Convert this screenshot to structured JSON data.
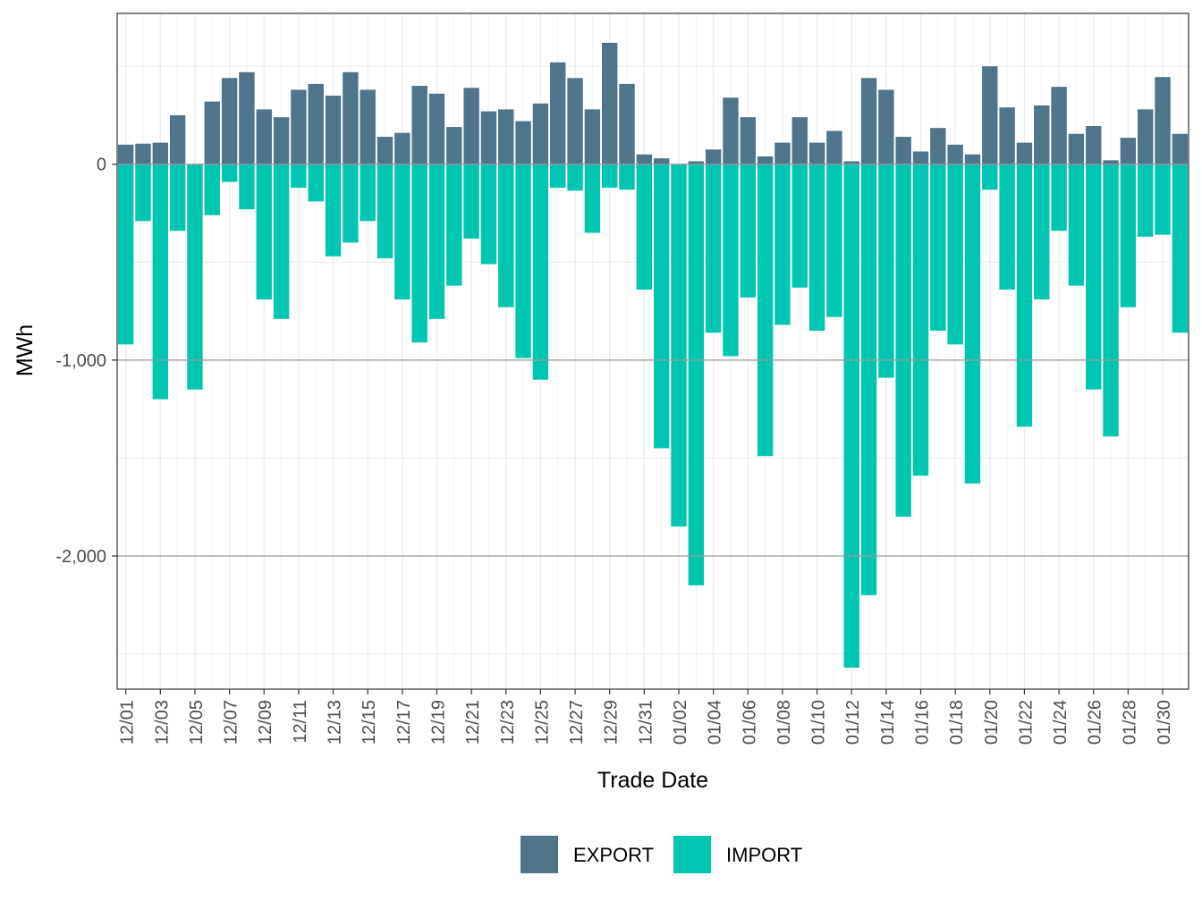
{
  "chart_data": {
    "type": "bar",
    "stacking": "diverging",
    "title": "",
    "xlabel": "Trade Date",
    "ylabel": "MWh",
    "ylim": [
      -2680,
      770
    ],
    "yticks": [
      0,
      -1000,
      -2000
    ],
    "ytick_labels": [
      "0",
      "-1,000",
      "-2,000"
    ],
    "grid": true,
    "legend_position": "bottom",
    "categories": [
      "12/01",
      "12/02",
      "12/03",
      "12/04",
      "12/05",
      "12/06",
      "12/07",
      "12/08",
      "12/09",
      "12/10",
      "12/11",
      "12/12",
      "12/13",
      "12/14",
      "12/15",
      "12/16",
      "12/17",
      "12/18",
      "12/19",
      "12/20",
      "12/21",
      "12/22",
      "12/23",
      "12/24",
      "12/25",
      "12/26",
      "12/27",
      "12/28",
      "12/29",
      "12/30",
      "12/31",
      "01/01",
      "01/02",
      "01/03",
      "01/04",
      "01/05",
      "01/06",
      "01/07",
      "01/08",
      "01/09",
      "01/10",
      "01/11",
      "01/12",
      "01/13",
      "01/14",
      "01/15",
      "01/16",
      "01/17",
      "01/18",
      "01/19",
      "01/20",
      "01/21",
      "01/22",
      "01/23",
      "01/24",
      "01/25",
      "01/26",
      "01/27",
      "01/28",
      "01/29",
      "01/30",
      "01/31"
    ],
    "xtick_labels": [
      "12/01",
      "12/03",
      "12/05",
      "12/07",
      "12/09",
      "12/11",
      "12/13",
      "12/15",
      "12/17",
      "12/19",
      "12/21",
      "12/23",
      "12/25",
      "12/27",
      "12/29",
      "12/31",
      "01/02",
      "01/04",
      "01/06",
      "01/08",
      "01/10",
      "01/12",
      "01/14",
      "01/16",
      "01/18",
      "01/20",
      "01/22",
      "01/24",
      "01/26",
      "01/28",
      "01/30"
    ],
    "series": [
      {
        "name": "EXPORT",
        "color": "#50748a",
        "values": [
          100,
          105,
          110,
          250,
          0,
          320,
          440,
          470,
          280,
          240,
          380,
          410,
          350,
          470,
          380,
          140,
          160,
          400,
          360,
          190,
          390,
          270,
          280,
          220,
          310,
          520,
          440,
          280,
          620,
          410,
          50,
          30,
          0,
          15,
          75,
          340,
          240,
          40,
          110,
          240,
          110,
          170,
          15,
          440,
          380,
          140,
          65,
          185,
          100,
          50,
          500,
          290,
          110,
          300,
          395,
          155,
          195,
          20,
          135,
          280,
          445,
          155
        ]
      },
      {
        "name": "IMPORT",
        "color": "#00c5b0",
        "values": [
          -920,
          -290,
          -1200,
          -340,
          -1150,
          -260,
          -90,
          -230,
          -690,
          -790,
          -120,
          -190,
          -470,
          -400,
          -290,
          -480,
          -690,
          -910,
          -790,
          -620,
          -380,
          -510,
          -730,
          -990,
          -1100,
          -120,
          -135,
          -350,
          -120,
          -130,
          -640,
          -1450,
          -1850,
          -2150,
          -860,
          -980,
          -680,
          -1490,
          -820,
          -630,
          -850,
          -780,
          -2570,
          -2200,
          -1090,
          -1800,
          -1590,
          -850,
          -920,
          -1630,
          -130,
          -640,
          -1340,
          -690,
          -340,
          -620,
          -1150,
          -1390,
          -730,
          -370,
          -360,
          -860
        ]
      }
    ]
  }
}
